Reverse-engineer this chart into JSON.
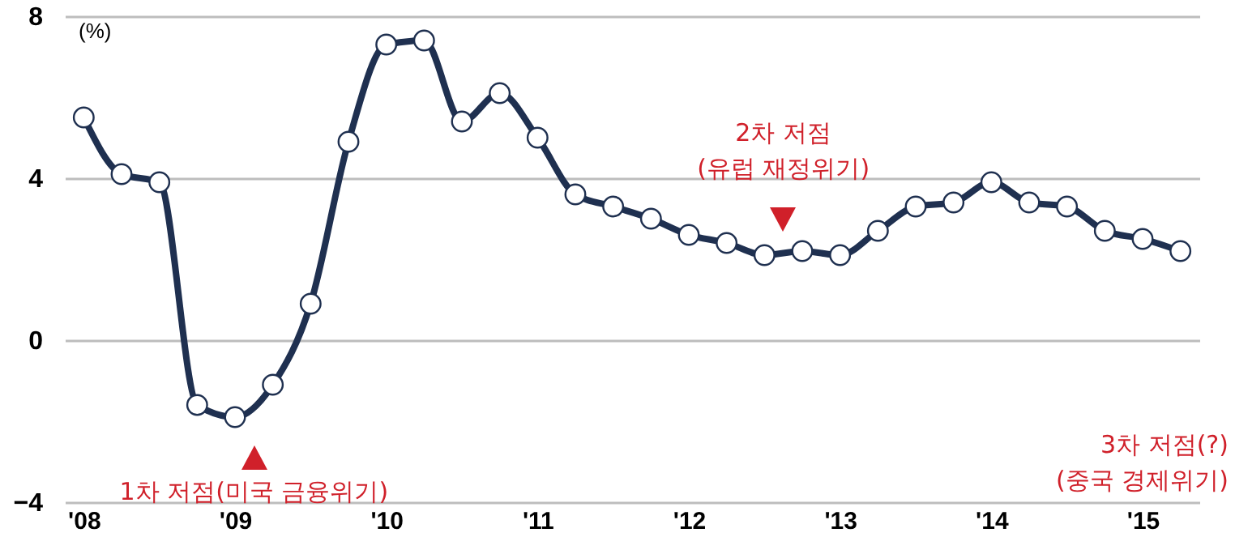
{
  "chart_data": {
    "type": "line",
    "ylabel": "(%)",
    "categories": [
      "'08",
      null,
      null,
      null,
      "'09",
      null,
      null,
      null,
      "'10",
      null,
      null,
      null,
      "'11",
      null,
      null,
      null,
      "'12",
      null,
      null,
      null,
      "'13",
      null,
      null,
      null,
      "'14",
      null,
      null,
      null,
      "'15",
      null
    ],
    "series": [
      {
        "color": "#1f3050",
        "values": [
          5.5,
          4.1,
          3.9,
          -1.6,
          -1.9,
          -1.1,
          0.9,
          4.9,
          7.3,
          7.4,
          5.4,
          6.1,
          5.0,
          3.6,
          3.3,
          3.0,
          2.6,
          2.4,
          2.1,
          2.2,
          2.1,
          2.7,
          3.3,
          3.4,
          3.9,
          3.4,
          3.3,
          2.7,
          2.5,
          2.2
        ]
      }
    ],
    "ylim": [
      -4,
      8
    ],
    "yticks": [
      -4,
      0,
      4,
      8
    ],
    "grid": "y",
    "marker": "circle",
    "line_style": "solid",
    "annotations": [
      "1차 저점(미국 금융위기)",
      "2차 저점\n(유럽 재정위기)",
      "3차 저점(?)\n(중국 경제위기)"
    ]
  }
}
